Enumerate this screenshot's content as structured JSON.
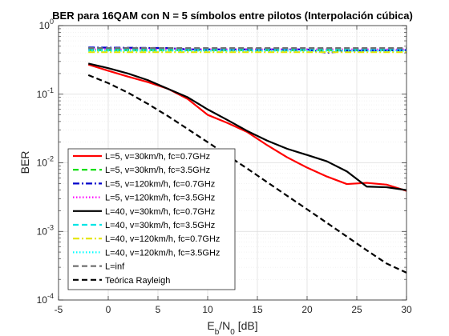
{
  "chart_data": {
    "type": "line",
    "title": "BER para 16QAM con N = 5 símbolos entre pilotos (Interpolación cúbica)",
    "xlabel_main": "E",
    "xlabel_sub1": "b",
    "xlabel_mid": "/N",
    "xlabel_sub2": "0",
    "xlabel_unit": " [dB]",
    "ylabel": "BER",
    "xlim": [
      -5,
      30
    ],
    "ylim": [
      0.0001,
      1
    ],
    "yscale": "log",
    "xticks": [
      "-5",
      "0",
      "5",
      "10",
      "15",
      "20",
      "25",
      "30"
    ],
    "yticks": [
      {
        "base": "10",
        "exp": "-4"
      },
      {
        "base": "10",
        "exp": "-3"
      },
      {
        "base": "10",
        "exp": "-2"
      },
      {
        "base": "10",
        "exp": "-1"
      },
      {
        "base": "10",
        "exp": "0"
      }
    ],
    "grid": true,
    "legend_position": "bottom-left",
    "series": [
      {
        "name": "L=5, v=30km/h, fc=0.7GHz",
        "color": "#ff0000",
        "dash": "solid",
        "x": [
          -2,
          0,
          2,
          4,
          6,
          8,
          10,
          12,
          14,
          16,
          18,
          20,
          22,
          24,
          26,
          28,
          30
        ],
        "y": [
          0.27,
          0.22,
          0.18,
          0.15,
          0.12,
          0.085,
          0.05,
          0.038,
          0.028,
          0.018,
          0.012,
          0.0085,
          0.0063,
          0.0049,
          0.0051,
          0.0048,
          0.0039
        ]
      },
      {
        "name": "L=5, v=30km/h, fc=3.5GHz",
        "color": "#00dd00",
        "dash": "dashed",
        "x": [
          -2,
          30
        ],
        "y": [
          0.44,
          0.44
        ]
      },
      {
        "name": "L=5, v=120km/h, fc=0.7GHz",
        "color": "#0000cc",
        "dash": "dashdot",
        "x": [
          -2,
          6,
          8,
          20,
          22,
          24,
          30
        ],
        "y": [
          0.48,
          0.47,
          0.45,
          0.45,
          0.4,
          0.43,
          0.44
        ]
      },
      {
        "name": "L=5, v=120km/h, fc=3.5GHz",
        "color": "#ff00ff",
        "dash": "dotted",
        "x": [
          -2,
          30
        ],
        "y": [
          0.45,
          0.45
        ]
      },
      {
        "name": "L=40, v=30km/h, fc=0.7GHz",
        "color": "#000000",
        "dash": "solid",
        "x": [
          -2,
          0,
          2,
          4,
          6,
          8,
          10,
          12,
          14,
          16,
          18,
          20,
          22,
          24,
          26,
          28,
          30
        ],
        "y": [
          0.28,
          0.24,
          0.2,
          0.16,
          0.12,
          0.09,
          0.06,
          0.042,
          0.029,
          0.021,
          0.016,
          0.013,
          0.0105,
          0.0075,
          0.0045,
          0.0044,
          0.004
        ]
      },
      {
        "name": "L=40, v=30km/h, fc=3.5GHz",
        "color": "#00e5e5",
        "dash": "dashed",
        "x": [
          -2,
          30
        ],
        "y": [
          0.46,
          0.46
        ]
      },
      {
        "name": "L=40, v=120km/h, fc=0.7GHz",
        "color": "#e5e500",
        "dash": "dashdot",
        "x": [
          -2,
          30
        ],
        "y": [
          0.41,
          0.41
        ]
      },
      {
        "name": "L=40, v=120km/h, fc=3.5GHz",
        "color": "#00ffff",
        "dash": "dotted",
        "x": [
          -2,
          30
        ],
        "y": [
          0.43,
          0.43
        ]
      },
      {
        "name": "L=inf",
        "color": "#707070",
        "dash": "dashed",
        "x": [
          -2,
          30
        ],
        "y": [
          0.47,
          0.47
        ]
      },
      {
        "name": "Teórica Rayleigh",
        "color": "#000000",
        "dash": "dashed",
        "x": [
          -2,
          0,
          2,
          4,
          6,
          8,
          10,
          12,
          14,
          16,
          18,
          20,
          22,
          24,
          26,
          28,
          30
        ],
        "y": [
          0.19,
          0.145,
          0.105,
          0.072,
          0.048,
          0.031,
          0.02,
          0.0128,
          0.0082,
          0.0052,
          0.0033,
          0.0021,
          0.00133,
          0.00084,
          0.00053,
          0.00034,
          0.00025
        ]
      }
    ]
  }
}
